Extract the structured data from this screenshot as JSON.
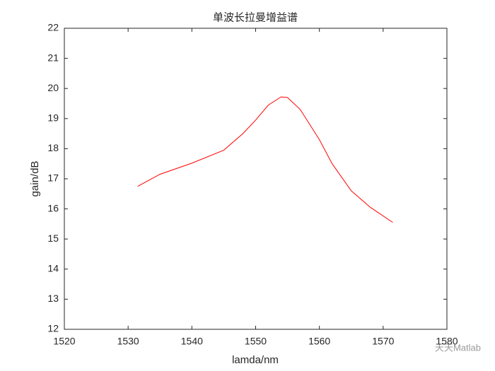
{
  "chart_data": {
    "type": "line",
    "title": "单波长拉曼增益谱",
    "x_label": "lamda/nm",
    "y_label": "gain/dB",
    "x": [
      1531.5,
      1535,
      1540,
      1545,
      1548,
      1550,
      1552,
      1554,
      1555,
      1557,
      1560,
      1562,
      1565,
      1568,
      1571.5
    ],
    "series": [
      {
        "color": "#ff0000",
        "values": [
          16.75,
          17.15,
          17.52,
          17.95,
          18.5,
          18.95,
          19.45,
          19.72,
          19.7,
          19.3,
          18.3,
          17.5,
          16.6,
          16.05,
          15.55
        ]
      }
    ],
    "xlim": [
      1520,
      1580
    ],
    "xticks": [
      1520,
      1530,
      1540,
      1550,
      1560,
      1570,
      1580
    ],
    "ylim": [
      12,
      22
    ],
    "yticks": [
      12,
      13,
      14,
      15,
      16,
      17,
      18,
      19,
      20,
      21,
      22
    ],
    "watermark": "天天Matlab"
  }
}
